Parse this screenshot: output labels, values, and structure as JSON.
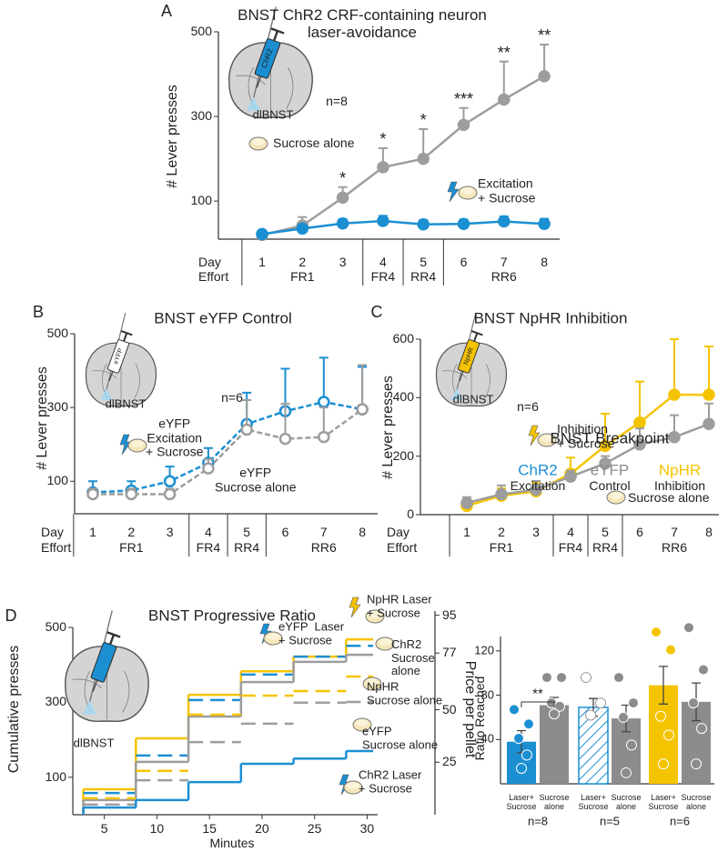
{
  "chart_data": [
    {
      "type": "line",
      "panel": "A",
      "title": "BNST ChR2 CRF-containing neuron\nlaser-avoidance",
      "y_label": "# Lever presses",
      "row_labels": [
        "Day",
        "Effort"
      ],
      "categories": [
        "1",
        "2",
        "3",
        "4",
        "5",
        "6",
        "7",
        "8"
      ],
      "efforts": [
        "FR1",
        "FR1",
        "FR1",
        "FR4",
        "RR4",
        "RR6",
        "RR6",
        "RR6"
      ],
      "ylim": [
        10,
        500
      ],
      "yticks": [
        100,
        300,
        500
      ],
      "series": [
        {
          "name": "Sucrose alone",
          "color": "#9d9d9d",
          "marker": "filled",
          "dashed": false,
          "values": [
            20,
            42,
            108,
            180,
            200,
            280,
            340,
            395
          ],
          "errors": [
            5,
            20,
            25,
            45,
            70,
            40,
            90,
            75
          ]
        },
        {
          "name": "Excitation\n+ Sucrose",
          "color": "#1b8fd2",
          "marker": "filled",
          "dashed": false,
          "values": [
            22,
            35,
            47,
            53,
            45,
            46,
            52,
            46
          ],
          "errors": [
            5,
            8,
            10,
            12,
            10,
            10,
            12,
            12
          ]
        }
      ],
      "significance": [
        null,
        null,
        "*",
        "*",
        "*",
        "***",
        "**",
        "**"
      ],
      "annotations": [
        "n=8",
        "ChR2",
        "dlBNST"
      ]
    },
    {
      "type": "line",
      "panel": "B",
      "title": "BNST eYFP Control",
      "y_label": "# Lever presses",
      "row_labels": [
        "Day",
        "Effort"
      ],
      "categories": [
        "1",
        "2",
        "3",
        "4",
        "5",
        "6",
        "7",
        "8"
      ],
      "efforts": [
        "FR1",
        "FR1",
        "FR1",
        "FR4",
        "RR4",
        "RR6",
        "RR6",
        "RR6"
      ],
      "ylim": [
        12,
        500
      ],
      "yticks": [
        100,
        300,
        500
      ],
      "series": [
        {
          "name": "eYFP\nExcitation\n+ Sucrose",
          "color": "#1b8fd2",
          "marker": "open",
          "dashed": true,
          "values": [
            70,
            75,
            100,
            150,
            255,
            290,
            315,
            295
          ],
          "errors": [
            30,
            25,
            40,
            40,
            85,
            115,
            120,
            115
          ]
        },
        {
          "name": "eYFP\nSucrose alone",
          "color": "#9d9d9d",
          "marker": "open",
          "dashed": true,
          "values": [
            65,
            65,
            65,
            135,
            240,
            215,
            220,
            295
          ],
          "errors": [
            15,
            15,
            15,
            25,
            80,
            95,
            80,
            120
          ]
        }
      ],
      "annotations": [
        "n=6",
        "eYFP",
        "dlBNST"
      ]
    },
    {
      "type": "line",
      "panel": "C",
      "title": "BNST NpHR Inhibition",
      "y_label": "# Lever presses",
      "row_labels": [
        "Day",
        "Effort"
      ],
      "categories": [
        "1",
        "2",
        "3",
        "4",
        "5",
        "6",
        "7",
        "8"
      ],
      "efforts": [
        "FR1",
        "FR1",
        "FR1",
        "FR4",
        "RR4",
        "RR6",
        "RR6",
        "RR6"
      ],
      "ylim": [
        0,
        600
      ],
      "yticks": [
        0,
        200,
        400,
        600
      ],
      "series": [
        {
          "name": "Inhibition\n+ Sucrose",
          "color": "#f5c400",
          "marker": "filled",
          "dashed": false,
          "values": [
            30,
            65,
            80,
            140,
            235,
            315,
            410,
            410
          ],
          "errors": [
            20,
            25,
            30,
            55,
            110,
            140,
            190,
            165
          ]
        },
        {
          "name": "Sucrose alone",
          "color": "#9d9d9d",
          "marker": "filled",
          "dashed": false,
          "values": [
            40,
            70,
            85,
            130,
            175,
            240,
            265,
            310
          ],
          "errors": [
            20,
            30,
            30,
            20,
            25,
            55,
            75,
            70
          ]
        }
      ],
      "annotations": [
        "n=6",
        "NpHR",
        "dlBNST"
      ]
    },
    {
      "type": "step",
      "panel": "D",
      "title": "BNST Progressive Ratio",
      "x_label": "Minutes",
      "y_label": "Cumulative presses",
      "y2_label": "Price per pellet",
      "x": [
        3,
        8,
        13,
        18,
        23,
        28
      ],
      "xlim": [
        2,
        31
      ],
      "xticks": [
        5,
        10,
        15,
        20,
        25,
        30
      ],
      "ylim": [
        0,
        500
      ],
      "yticks": [
        100,
        300,
        500
      ],
      "y2lim": [
        0,
        97
      ],
      "y2ticks": [
        25,
        50,
        77,
        95
      ],
      "series": [
        {
          "name": "NpHR Laser\n+ Sucrose",
          "color": "#f5c400",
          "dashed": false,
          "values": [
            68,
            204,
            320,
            383,
            422,
            468
          ]
        },
        {
          "name": "eYFP  Laser\n+ Sucrose",
          "color": "#1b8fd2",
          "dashed": true,
          "values": [
            58,
            158,
            306,
            374,
            422,
            451
          ]
        },
        {
          "name": "ChR2\nSucrose\nalone",
          "color": "#9d9d9d",
          "dashed": false,
          "values": [
            39,
            141,
            262,
            354,
            408,
            427
          ]
        },
        {
          "name": "NpHR\nSucrose alone",
          "color": "#f5c400",
          "dashed": true,
          "values": [
            44,
            117,
            267,
            318,
            330,
            369
          ]
        },
        {
          "name": "eYFP\nSucrose alone",
          "color": "#9d9d9d",
          "dashed": true,
          "values": [
            27,
            92,
            194,
            243,
            299,
            301
          ]
        },
        {
          "name": "ChR2 Laser\n+ Sucrose",
          "color": "#1b8fd2",
          "dashed": false,
          "values": [
            19,
            39,
            87,
            136,
            150,
            170
          ]
        }
      ],
      "annotations": [
        "dlBNST"
      ]
    },
    {
      "type": "bar",
      "title": "BNST Breakpoint",
      "y_label": "Ratio Reached",
      "ylim": [
        0,
        133
      ],
      "yticks": [
        40,
        80,
        120
      ],
      "groups": [
        {
          "name": "ChR2",
          "subtitle": "Excitation",
          "color": "#1b8fd2",
          "n": "n=8"
        },
        {
          "name": "eYFP",
          "subtitle": "Control",
          "color": "#8c8c8c",
          "n": "n=5"
        },
        {
          "name": "NpHR",
          "subtitle": "Inhibition",
          "color": "#f5c400",
          "n": "n=6"
        }
      ],
      "categories": [
        "Laser+\nSucrose",
        "Sucrose\nalone",
        "Laser+\nSucrose",
        "Sucrose\nalone",
        "Laser+\nSucrose",
        "Sucrose\nalone"
      ],
      "values": [
        38,
        71,
        69,
        59,
        89,
        74
      ],
      "errors": [
        10,
        7,
        8,
        12,
        17,
        17
      ],
      "colors": [
        "#1b8fd2",
        "#8c8c8c",
        "#1b8fd2",
        "#8c8c8c",
        "#f5c400",
        "#8c8c8c"
      ],
      "hatched": [
        false,
        false,
        true,
        false,
        false,
        false
      ],
      "points": [
        [
          67,
          54,
          41,
          26,
          14
        ],
        [
          96,
          96,
          73,
          70,
          63
        ],
        [
          96,
          73,
          62
        ],
        [
          96,
          73,
          60,
          35,
          10
        ],
        [
          137,
          121,
          61,
          44,
          18
        ],
        [
          141,
          103,
          73,
          50,
          18
        ]
      ],
      "significance": "**"
    }
  ]
}
